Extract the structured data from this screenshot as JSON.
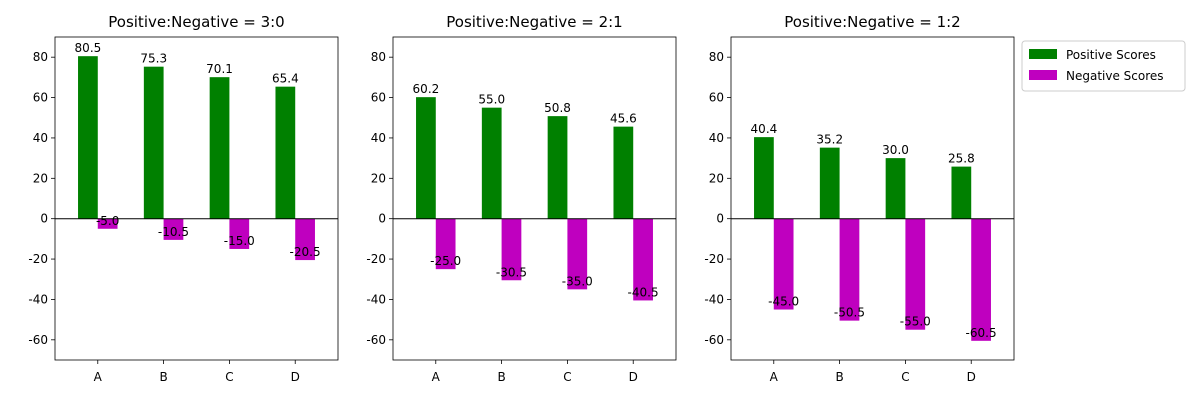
{
  "legend": {
    "placement": "upper-left-outside-right",
    "items": [
      {
        "label": "Positive Scores",
        "color": "#008000"
      },
      {
        "label": "Negative Scores",
        "color": "#bf00bf"
      }
    ]
  },
  "chart_data": [
    {
      "type": "bar",
      "title": "Positive:Negative = 3:0",
      "categories": [
        "A",
        "B",
        "C",
        "D"
      ],
      "series": [
        {
          "name": "Positive Scores",
          "color": "#008000",
          "values": [
            80.5,
            75.3,
            70.1,
            65.4
          ]
        },
        {
          "name": "Negative Scores",
          "color": "#bf00bf",
          "values": [
            -5.0,
            -10.5,
            -15.0,
            -20.5
          ]
        }
      ],
      "ylim": [
        -70,
        90
      ],
      "yticks": [
        -60,
        -40,
        -20,
        0,
        20,
        40,
        60,
        80
      ],
      "grid": false
    },
    {
      "type": "bar",
      "title": "Positive:Negative = 2:1",
      "categories": [
        "A",
        "B",
        "C",
        "D"
      ],
      "series": [
        {
          "name": "Positive Scores",
          "color": "#008000",
          "values": [
            60.2,
            55.0,
            50.8,
            45.6
          ]
        },
        {
          "name": "Negative Scores",
          "color": "#bf00bf",
          "values": [
            -25.0,
            -30.5,
            -35.0,
            -40.5
          ]
        }
      ],
      "ylim": [
        -70,
        90
      ],
      "yticks": [
        -60,
        -40,
        -20,
        0,
        20,
        40,
        60,
        80
      ],
      "grid": false
    },
    {
      "type": "bar",
      "title": "Positive:Negative = 1:2",
      "categories": [
        "A",
        "B",
        "C",
        "D"
      ],
      "series": [
        {
          "name": "Positive Scores",
          "color": "#008000",
          "values": [
            40.4,
            35.2,
            30.0,
            25.8
          ]
        },
        {
          "name": "Negative Scores",
          "color": "#bf00bf",
          "values": [
            -45.0,
            -50.5,
            -55.0,
            -60.5
          ]
        }
      ],
      "ylim": [
        -70,
        90
      ],
      "yticks": [
        -60,
        -40,
        -20,
        0,
        20,
        40,
        60,
        80
      ],
      "grid": false
    }
  ]
}
